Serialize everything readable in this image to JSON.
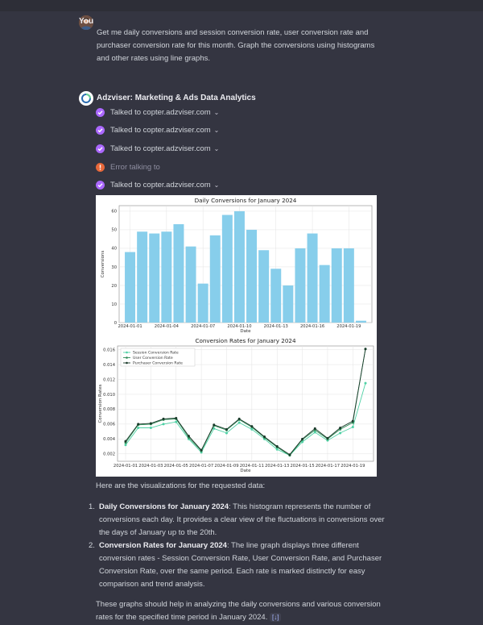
{
  "user": {
    "name": "You",
    "message": "Get me daily conversions and session conversion rate, user conversion rate and purchaser conversion rate for this month. Graph the conversions using histograms and other rates using line graphs."
  },
  "assistant": {
    "name": "Adzviser: Marketing & Ads Data Analytics",
    "tool_calls": [
      {
        "status": "ok",
        "label": "Talked to copter.adzviser.com",
        "chevron": "⌄"
      },
      {
        "status": "ok",
        "label": "Talked to copter.adzviser.com",
        "chevron": "⌄"
      },
      {
        "status": "ok",
        "label": "Talked to copter.adzviser.com",
        "chevron": "⌄"
      },
      {
        "status": "error",
        "label": "Error talking to",
        "chevron": ""
      },
      {
        "status": "ok",
        "label": "Talked to copter.adzviser.com",
        "chevron": "⌄"
      }
    ],
    "intro": "Here are the visualizations for the requested data:",
    "list": [
      {
        "num": "1.",
        "title": "Daily Conversions for January 2024",
        "text": ": This histogram represents the number of conversions each day. It provides a clear view of the fluctuations in conversions over the days of January up to the 20th."
      },
      {
        "num": "2.",
        "title": "Conversion Rates for January 2024",
        "text": ": The line graph displays three different conversion rates - Session Conversion Rate, User Conversion Rate, and Purchaser Conversion Rate, over the same period. Each rate is marked distinctly for easy comparison and trend analysis."
      }
    ],
    "closing": "These graphs should help in analyzing the daily conversions and various conversion rates for the specified time period in January 2024.",
    "citation": "[↓]"
  },
  "colors": {
    "bar": "#87ceeb",
    "session": "#4fd1a5",
    "user": "#2e8b57",
    "purchaser": "#1a3a2a",
    "accent_ok": "#ab68ff",
    "accent_err": "#e8683a"
  },
  "icons": {
    "user_avatar": "user-avatar-icon",
    "assistant_avatar": "adzviser-logo-icon",
    "ok": "check-circle-icon",
    "error": "error-circle-icon"
  },
  "chart_data": [
    {
      "type": "bar",
      "title": "Daily Conversions for January 2024",
      "xlabel": "Date",
      "ylabel": "Conversions",
      "categories": [
        "2024-01-01",
        "2024-01-02",
        "2024-01-03",
        "2024-01-04",
        "2024-01-05",
        "2024-01-06",
        "2024-01-07",
        "2024-01-08",
        "2024-01-09",
        "2024-01-10",
        "2024-01-11",
        "2024-01-12",
        "2024-01-13",
        "2024-01-14",
        "2024-01-15",
        "2024-01-16",
        "2024-01-17",
        "2024-01-18",
        "2024-01-19",
        "2024-01-20"
      ],
      "values": [
        38,
        49,
        48,
        49,
        53,
        41,
        21,
        47,
        58,
        60,
        50,
        39,
        29,
        20,
        40,
        48,
        31,
        40,
        40,
        1
      ],
      "x_ticks": [
        "2024-01-01",
        "2024-01-04",
        "2024-01-07",
        "2024-01-10",
        "2024-01-13",
        "2024-01-16",
        "2024-01-19"
      ],
      "y_ticks": [
        0,
        10,
        20,
        30,
        40,
        50,
        60
      ],
      "ylim": [
        0,
        63
      ],
      "grid": true
    },
    {
      "type": "line",
      "title": "Conversion Rates for January 2024",
      "xlabel": "Date",
      "ylabel": "Conversion Rates",
      "x": [
        "2024-01-01",
        "2024-01-02",
        "2024-01-03",
        "2024-01-04",
        "2024-01-05",
        "2024-01-06",
        "2024-01-07",
        "2024-01-08",
        "2024-01-09",
        "2024-01-10",
        "2024-01-11",
        "2024-01-12",
        "2024-01-13",
        "2024-01-14",
        "2024-01-15",
        "2024-01-16",
        "2024-01-17",
        "2024-01-18",
        "2024-01-19",
        "2024-01-20"
      ],
      "x_ticks": [
        "2024-01-01",
        "2024-01-03",
        "2024-01-05",
        "2024-01-07",
        "2024-01-09",
        "2024-01-11",
        "2024-01-13",
        "2024-01-15",
        "2024-01-17",
        "2024-01-19"
      ],
      "y_ticks": [
        "0.002",
        "0.004",
        "0.006",
        "0.008",
        "0.010",
        "0.012",
        "0.014",
        "0.016"
      ],
      "ylim": [
        0.001,
        0.0165
      ],
      "legend_position": "top-left",
      "grid": true,
      "series": [
        {
          "name": "Session Conversion Rate",
          "values": [
            0.0032,
            0.0055,
            0.0055,
            0.006,
            0.0063,
            0.004,
            0.0022,
            0.0054,
            0.0048,
            0.0062,
            0.0053,
            0.004,
            0.0026,
            0.0018,
            0.0036,
            0.0049,
            0.0038,
            0.0048,
            0.0056,
            0.0115
          ]
        },
        {
          "name": "User Conversion Rate",
          "values": [
            0.0035,
            0.0059,
            0.006,
            0.0066,
            0.0067,
            0.0042,
            0.0024,
            0.0058,
            0.0052,
            0.0066,
            0.0056,
            0.0042,
            0.0029,
            0.0018,
            0.0039,
            0.0052,
            0.004,
            0.0053,
            0.0062,
            0.0161
          ]
        },
        {
          "name": "Purchaser Conversion Rate",
          "values": [
            0.0037,
            0.006,
            0.0061,
            0.0067,
            0.0068,
            0.0044,
            0.0025,
            0.0059,
            0.0053,
            0.0067,
            0.0057,
            0.0043,
            0.003,
            0.0019,
            0.004,
            0.0054,
            0.0041,
            0.0055,
            0.0064,
            0.0161
          ]
        }
      ]
    }
  ]
}
